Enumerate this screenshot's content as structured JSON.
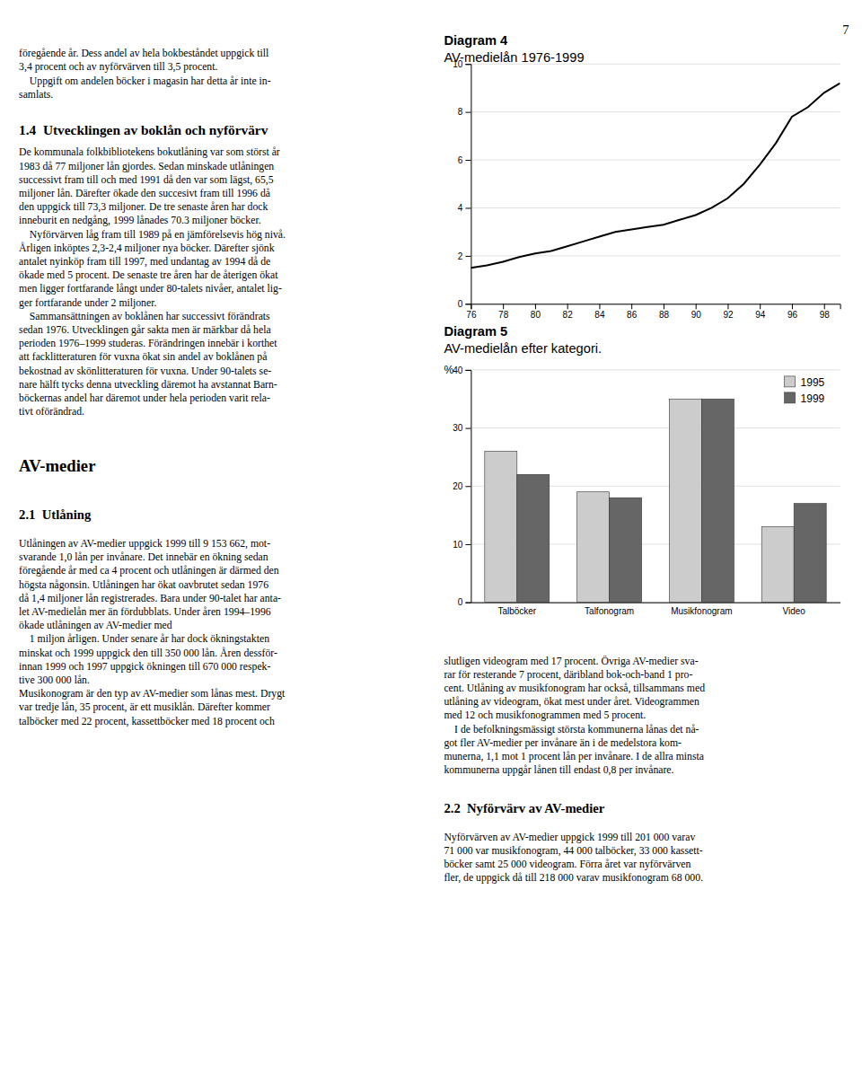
{
  "page_number": "7",
  "texts": {
    "para1": [
      "föregående år. Dess andel av hela bokbeståndet uppgick till",
      "3,4 procent och av nyförvärven till 3,5 procent.",
      "    Uppgift om andelen böcker i magasin har detta år inte in-",
      "samlats."
    ],
    "heading14": "1.4  Utvecklingen av boklån och nyförvärv",
    "para2": [
      "De kommunala folkbibliotekens bokutlåning var som störst år",
      "1983 då 77 miljoner lån gjordes. Sedan minskade utlåningen",
      "successivt fram till och med 1991 då den var som lägst, 65,5",
      "miljoner lån. Därefter ökade den succesivt fram till 1996 då",
      "den uppgick till 73,3 miljoner. De tre senaste åren har dock",
      "inneburit en nedgång, 1999 lånades 70.3 miljoner böcker.",
      "    Nyförvärven låg fram till 1989 på en jämförelsevis hög nivå.",
      "Årligen inköptes 2,3-2,4 miljoner nya böcker. Därefter sjönk",
      "antalet nyinköp fram till 1997, med undantag av 1994 då de",
      "ökade med 5 procent. De senaste tre åren har de återigen ökat",
      "men ligger fortfarande långt under 80-talets nivåer, antalet lig-",
      "ger fortfarande under 2 miljoner.",
      "    Sammansättningen av boklånen har successivt förändrats",
      "sedan 1976. Utvecklingen går sakta men är märkbar då hela",
      "perioden 1976–1999 studeras. Förändringen innebär i korthet",
      "att facklitteraturen för vuxna ökat sin andel av boklånen på",
      "bekostnad av skönlitteraturen för vuxna. Under 90-talets se-",
      "nare hälft tycks denna utveckling däremot ha avstannat Barn-",
      "böckernas andel har däremot under hela perioden varit rela-",
      "tivt oförändrad."
    ],
    "heading_avmedier": "AV-medier",
    "heading21": "2.1  Utlåning",
    "para3": [
      "Utlåningen av AV-medier uppgick 1999 till 9 153 662, mot-",
      "svarande 1,0 lån per invånare. Det innebär en ökning sedan",
      "föregående år med ca 4 procent och utlåningen är därmed den",
      "högsta någonsin. Utlåningen har ökat oavbrutet sedan 1976",
      "då 1,4 miljoner lån registrerades. Bara under 90-talet har anta-",
      "let AV-medielån mer än fördubblats. Under åren 1994–1996",
      "ökade utlåningen av AV-medier med",
      "    1 miljon årligen. Under senare år har dock ökningstakten",
      "minskat och 1999 uppgick den till 350 000 lån. Åren dessför-",
      "innan 1999 och 1997 uppgick ökningen till 670 000 respek-",
      "tive 300 000 lån.",
      "Musikonogram är den typ av AV-medier som lånas mest. Drygt",
      "var tredje lån, 35 procent, är ett musiklån. Därefter kommer",
      "talböcker med 22 procent, kassettböcker med 18 procent och"
    ],
    "para_right1": [
      "slutligen videogram med 17 procent. Övriga AV-medier sva-",
      "rar för resterande 7 procent, däribland bok-och-band 1 pro-",
      "cent. Utlåning av musikfonogram har också, tillsammans med",
      "utlåning av videogram, ökat mest under året. Videogrammen",
      "med 12 och musikfonogrammen med 5 procent.",
      "    I de befolkningsmässigt största kommunerna lånas det nå-",
      "got fler AV-medier per invånare än i de medelstora kom-",
      "munerna, 1,1 mot 1 procent lån per invånare. I de allra minsta",
      "kommunerna uppgår lånen till endast 0,8 per invånare."
    ],
    "heading22": "2.2  Nyförvärv av AV-medier",
    "para_right2": [
      "Nyförvärven av AV-medier uppgick 1999 till 201 000 varav",
      "71 000 var musikfonogram, 44 000 talböcker, 33 000 kassett-",
      "böcker samt 25 000 videogram. Förra året var nyförvärven",
      "fler, de uppgick då till 218 000 varav musikfonogram 68 000."
    ]
  },
  "chart_data": [
    {
      "type": "line",
      "title": "Diagram 4",
      "subtitle": "AV-medielån 1976-1999",
      "x": [
        1976,
        1977,
        1978,
        1979,
        1980,
        1981,
        1982,
        1983,
        1984,
        1985,
        1986,
        1987,
        1988,
        1989,
        1990,
        1991,
        1992,
        1993,
        1994,
        1995,
        1996,
        1997,
        1998,
        1999
      ],
      "values": [
        1.5,
        1.6,
        1.75,
        1.95,
        2.1,
        2.2,
        2.4,
        2.6,
        2.8,
        3.0,
        3.1,
        3.2,
        3.3,
        3.5,
        3.7,
        4.0,
        4.4,
        5.0,
        5.8,
        6.7,
        7.8,
        8.2,
        8.8,
        9.2
      ],
      "color": "#000000",
      "xlim": [
        1976,
        1999
      ],
      "xticks": [
        {
          "value": 1976,
          "label": "76"
        },
        {
          "value": 1978,
          "label": "78"
        },
        {
          "value": 1980,
          "label": "80"
        },
        {
          "value": 1982,
          "label": "82"
        },
        {
          "value": 1984,
          "label": "84"
        },
        {
          "value": 1986,
          "label": "86"
        },
        {
          "value": 1988,
          "label": "88"
        },
        {
          "value": 1990,
          "label": "90"
        },
        {
          "value": 1992,
          "label": "92"
        },
        {
          "value": 1994,
          "label": "94"
        },
        {
          "value": 1996,
          "label": "96"
        },
        {
          "value": 1998,
          "label": "98"
        }
      ],
      "ylim": [
        0,
        10
      ],
      "yticks": [
        0,
        2,
        4,
        6,
        8,
        10
      ],
      "grid": true
    },
    {
      "type": "bar",
      "title": "Diagram 5",
      "subtitle": "AV-medielån efter kategori.",
      "ylabel": "%",
      "categories": [
        "Talböcker",
        "Talfonogram",
        "Musikfonogram",
        "Video"
      ],
      "series": [
        {
          "name": "1995",
          "color": "#cccccc",
          "values": [
            26,
            19,
            35,
            13
          ]
        },
        {
          "name": "1999",
          "color": "#666666",
          "values": [
            22,
            18,
            35,
            17
          ]
        }
      ],
      "ylim": [
        0,
        40
      ],
      "yticks": [
        0,
        10,
        20,
        30,
        40
      ],
      "grid": true,
      "legend": "upper right"
    }
  ]
}
